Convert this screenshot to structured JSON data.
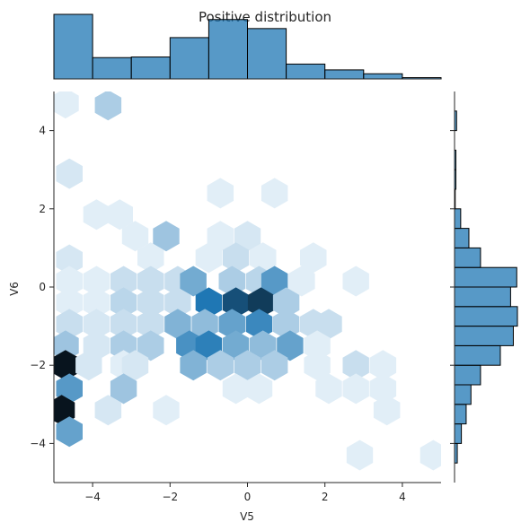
{
  "chart_data": {
    "type": "hexbin-joint",
    "title": "Positive distribution",
    "xlabel": "V5",
    "ylabel": "V6",
    "xlim": [
      -5,
      5
    ],
    "ylim": [
      -5,
      5
    ],
    "xticks": [
      -4,
      -2,
      0,
      2,
      4
    ],
    "yticks": [
      -4,
      -2,
      0,
      2,
      4
    ],
    "xtick_labels": [
      "−4",
      "−2",
      "0",
      "2",
      "4"
    ],
    "ytick_labels": [
      "−4",
      "−2",
      "0",
      "2",
      "4"
    ],
    "color": "#1f77b4",
    "hexbins": [
      {
        "x": -4.7,
        "y": 4.7,
        "v": 0.06
      },
      {
        "x": -3.6,
        "y": 4.65,
        "v": 0.25
      },
      {
        "x": -4.6,
        "y": 2.9,
        "v": 0.1
      },
      {
        "x": -0.7,
        "y": 2.4,
        "v": 0.06
      },
      {
        "x": 0.7,
        "y": 2.4,
        "v": 0.06
      },
      {
        "x": -3.9,
        "y": 1.85,
        "v": 0.06
      },
      {
        "x": -3.3,
        "y": 1.85,
        "v": 0.06
      },
      {
        "x": -2.9,
        "y": 1.3,
        "v": 0.06
      },
      {
        "x": -2.1,
        "y": 1.3,
        "v": 0.3
      },
      {
        "x": -0.7,
        "y": 1.3,
        "v": 0.06
      },
      {
        "x": 0.0,
        "y": 1.3,
        "v": 0.1
      },
      {
        "x": -4.6,
        "y": 0.7,
        "v": 0.1
      },
      {
        "x": -2.5,
        "y": 0.75,
        "v": 0.06
      },
      {
        "x": -1.0,
        "y": 0.75,
        "v": 0.06
      },
      {
        "x": -0.3,
        "y": 0.75,
        "v": 0.15
      },
      {
        "x": 0.4,
        "y": 0.75,
        "v": 0.06
      },
      {
        "x": 1.7,
        "y": 0.75,
        "v": 0.06
      },
      {
        "x": -4.6,
        "y": 0.15,
        "v": 0.06
      },
      {
        "x": -3.9,
        "y": 0.15,
        "v": 0.06
      },
      {
        "x": -3.2,
        "y": 0.15,
        "v": 0.15
      },
      {
        "x": -2.5,
        "y": 0.15,
        "v": 0.15
      },
      {
        "x": -1.8,
        "y": 0.15,
        "v": 0.15
      },
      {
        "x": -1.4,
        "y": 0.15,
        "v": 0.45
      },
      {
        "x": -0.4,
        "y": 0.15,
        "v": 0.25
      },
      {
        "x": 0.3,
        "y": 0.15,
        "v": 0.2
      },
      {
        "x": 0.7,
        "y": 0.15,
        "v": 0.55
      },
      {
        "x": 1.4,
        "y": 0.15,
        "v": 0.06
      },
      {
        "x": 2.8,
        "y": 0.15,
        "v": 0.06
      },
      {
        "x": -4.6,
        "y": -0.4,
        "v": 0.06
      },
      {
        "x": -3.9,
        "y": -0.4,
        "v": 0.06
      },
      {
        "x": -3.2,
        "y": -0.4,
        "v": 0.2
      },
      {
        "x": -2.5,
        "y": -0.4,
        "v": 0.15
      },
      {
        "x": -1.8,
        "y": -0.4,
        "v": 0.15
      },
      {
        "x": -1.0,
        "y": -0.4,
        "v": 0.75
      },
      {
        "x": -0.3,
        "y": -0.4,
        "v": 0.85
      },
      {
        "x": 0.35,
        "y": -0.4,
        "v": 0.9
      },
      {
        "x": 1.0,
        "y": -0.4,
        "v": 0.25
      },
      {
        "x": -4.6,
        "y": -0.95,
        "v": 0.15
      },
      {
        "x": -3.9,
        "y": -0.95,
        "v": 0.1
      },
      {
        "x": -3.2,
        "y": -0.95,
        "v": 0.15
      },
      {
        "x": -2.5,
        "y": -0.95,
        "v": 0.15
      },
      {
        "x": -1.8,
        "y": -0.95,
        "v": 0.4
      },
      {
        "x": -1.1,
        "y": -0.95,
        "v": 0.35
      },
      {
        "x": -0.4,
        "y": -0.95,
        "v": 0.5
      },
      {
        "x": 0.3,
        "y": -0.95,
        "v": 0.65
      },
      {
        "x": 1.0,
        "y": -0.95,
        "v": 0.25
      },
      {
        "x": 1.7,
        "y": -0.95,
        "v": 0.15
      },
      {
        "x": 2.1,
        "y": -0.95,
        "v": 0.15
      },
      {
        "x": -4.7,
        "y": -1.5,
        "v": 0.3
      },
      {
        "x": -3.9,
        "y": -1.5,
        "v": 0.1
      },
      {
        "x": -3.2,
        "y": -1.5,
        "v": 0.25
      },
      {
        "x": -2.5,
        "y": -1.5,
        "v": 0.25
      },
      {
        "x": -1.5,
        "y": -1.5,
        "v": 0.6
      },
      {
        "x": -1.0,
        "y": -1.5,
        "v": 0.7
      },
      {
        "x": -0.3,
        "y": -1.5,
        "v": 0.45
      },
      {
        "x": 0.4,
        "y": -1.5,
        "v": 0.35
      },
      {
        "x": 1.1,
        "y": -1.5,
        "v": 0.5
      },
      {
        "x": 1.8,
        "y": -1.5,
        "v": 0.06
      },
      {
        "x": -4.7,
        "y": -2.0,
        "v": 1.0
      },
      {
        "x": -4.1,
        "y": -2.0,
        "v": 0.1
      },
      {
        "x": -3.2,
        "y": -2.0,
        "v": 0.06
      },
      {
        "x": -2.9,
        "y": -2.0,
        "v": 0.1
      },
      {
        "x": -1.4,
        "y": -2.0,
        "v": 0.4
      },
      {
        "x": -0.7,
        "y": -2.0,
        "v": 0.25
      },
      {
        "x": 0.0,
        "y": -2.0,
        "v": 0.25
      },
      {
        "x": 0.7,
        "y": -2.0,
        "v": 0.25
      },
      {
        "x": 1.8,
        "y": -2.0,
        "v": 0.06
      },
      {
        "x": 2.8,
        "y": -2.0,
        "v": 0.15
      },
      {
        "x": 3.5,
        "y": -2.0,
        "v": 0.06
      },
      {
        "x": -4.6,
        "y": -2.6,
        "v": 0.55
      },
      {
        "x": -3.2,
        "y": -2.6,
        "v": 0.3
      },
      {
        "x": -0.3,
        "y": -2.6,
        "v": 0.06
      },
      {
        "x": 0.3,
        "y": -2.6,
        "v": 0.06
      },
      {
        "x": 2.1,
        "y": -2.6,
        "v": 0.06
      },
      {
        "x": 2.8,
        "y": -2.6,
        "v": 0.06
      },
      {
        "x": 3.5,
        "y": -2.6,
        "v": 0.06
      },
      {
        "x": -4.8,
        "y": -3.15,
        "v": 1.0
      },
      {
        "x": -3.6,
        "y": -3.15,
        "v": 0.1
      },
      {
        "x": -2.1,
        "y": -3.15,
        "v": 0.06
      },
      {
        "x": 3.6,
        "y": -3.15,
        "v": 0.06
      },
      {
        "x": -4.6,
        "y": -3.7,
        "v": 0.5
      },
      {
        "x": 2.9,
        "y": -4.3,
        "v": 0.06
      },
      {
        "x": 4.8,
        "y": -4.3,
        "v": 0.06
      }
    ],
    "marginal_x": {
      "bin_edges": [
        -5,
        -4,
        -3,
        -2,
        -1,
        0,
        1,
        2,
        3,
        4,
        5
      ],
      "counts": [
        100,
        33,
        34,
        64,
        92,
        78,
        23,
        14,
        8,
        2
      ]
    },
    "marginal_y": {
      "bin_edges": [
        -4.5,
        -4.0,
        -3.5,
        -3.0,
        -2.5,
        -2.0,
        -1.5,
        -1.0,
        -0.5,
        0.0,
        0.5,
        1.0,
        1.5,
        2.0,
        2.5,
        3.0,
        3.5,
        4.0,
        4.5
      ],
      "counts": [
        4,
        10,
        17,
        24,
        38,
        67,
        86,
        92,
        82,
        91,
        38,
        21,
        9,
        1,
        2,
        2,
        0,
        3
      ]
    }
  }
}
